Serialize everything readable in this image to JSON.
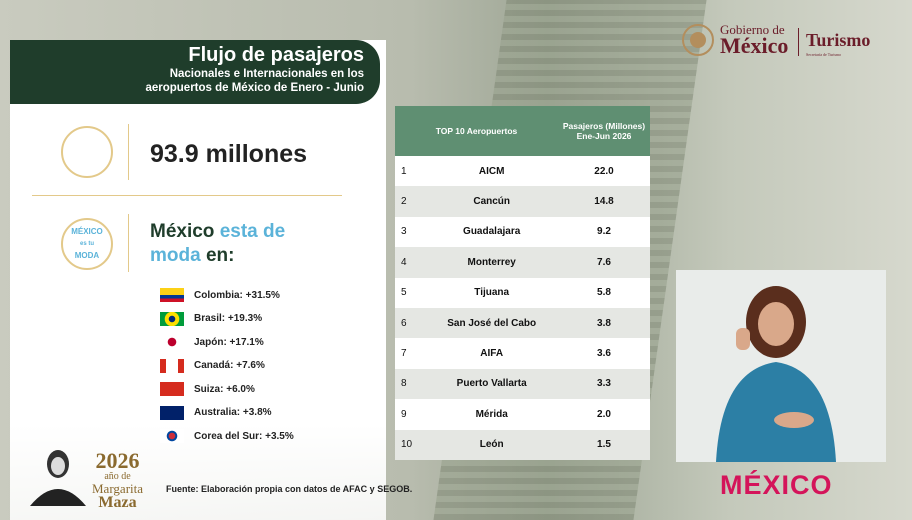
{
  "header": {
    "title": "Flujo de pasajeros",
    "subtitle_lines": [
      "Nacionales e Internacionales en los",
      "aeropuertos de México de Enero - Junio"
    ]
  },
  "logo": {
    "gobierno": "Gobierno de",
    "mexico": "México",
    "dependencia": "Turismo",
    "small": "Secretaría de Turismo"
  },
  "stat": {
    "value": "93.9 millones"
  },
  "moda": {
    "badge_top": "MÉXICO",
    "badge_mid": "es tu",
    "badge_bottom": "MODA",
    "heading_parts": [
      "México",
      "esta de",
      "moda",
      "en:"
    ]
  },
  "countries": [
    {
      "label": "Colombia: +31.5%"
    },
    {
      "label": "Brasil: +19.3%"
    },
    {
      "label": "Japón: +17.1%"
    },
    {
      "label": "Canadá: +7.6%"
    },
    {
      "label": "Suiza: +6.0%"
    },
    {
      "label": "Australia: +3.8%"
    },
    {
      "label": "Corea del Sur: +3.5%"
    }
  ],
  "table": {
    "headers": [
      "TOP 10 Aeropuertos",
      "Pasajeros (Millones) Ene-Jun 2026"
    ],
    "rows": [
      [
        "1",
        "AICM",
        "22.0"
      ],
      [
        "2",
        "Cancún",
        "14.8"
      ],
      [
        "3",
        "Guadalajara",
        "9.2"
      ],
      [
        "4",
        "Monterrey",
        "7.6"
      ],
      [
        "5",
        "Tijuana",
        "5.8"
      ],
      [
        "6",
        "San José del Cabo",
        "3.8"
      ],
      [
        "7",
        "AIFA",
        "3.6"
      ],
      [
        "8",
        "Puerto Vallarta",
        "3.3"
      ],
      [
        "9",
        "Mérida",
        "2.0"
      ],
      [
        "10",
        "León",
        "1.5"
      ]
    ]
  },
  "source": "Fuente: Elaboración propia con datos de AFAC y SEGOB.",
  "commemoration": {
    "year": "2026",
    "line1": "año de",
    "line2": "Margarita",
    "line3": "Maza"
  },
  "brand": "MÉXICO"
}
